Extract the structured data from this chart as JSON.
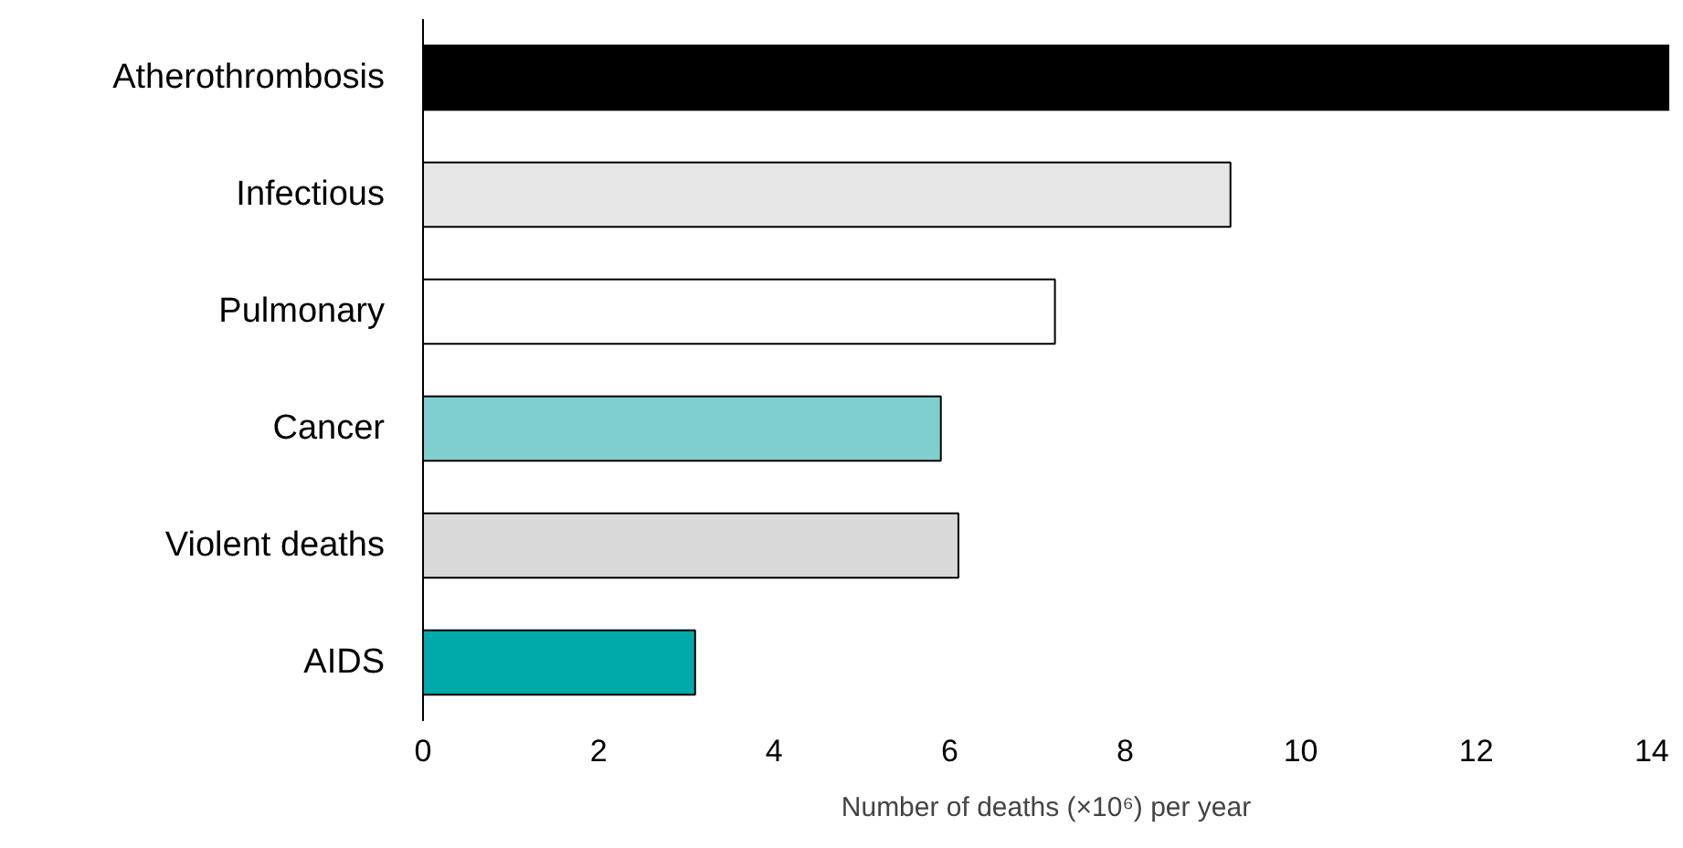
{
  "chart_data": {
    "type": "bar",
    "orientation": "horizontal",
    "xlabel": "Number of deaths (×10⁶) per year",
    "categories": [
      "Atherothrombosis",
      "Infectious",
      "Pulmonary",
      "Cancer",
      "Violent deaths",
      "AIDS"
    ],
    "values": [
      14.2,
      9.2,
      7.2,
      5.9,
      6.1,
      3.1
    ],
    "colors": [
      "#000000",
      "#e6e6e6",
      "#ffffff",
      "#7fcfcf",
      "#d9d9d9",
      "#00aaaa"
    ],
    "xlim": [
      0,
      14.2
    ],
    "xticks": [
      0,
      2,
      4,
      6,
      8,
      10,
      12,
      14
    ],
    "grid": false
  }
}
